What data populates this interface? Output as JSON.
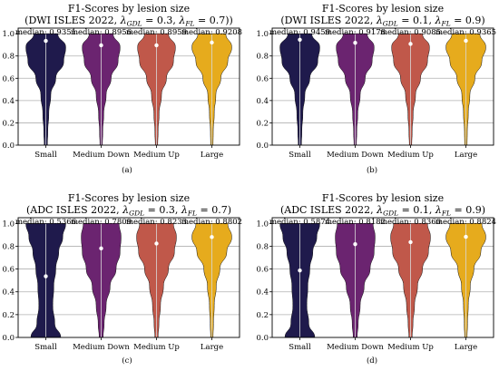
{
  "chart_data": [
    {
      "type": "violin",
      "title_line1": "F1-Scores by lesion size",
      "title_line2": "(DWI ISLES 2022, λGDL = 0.3, λFL = 0.7))",
      "title_parts": {
        "open": "(DWI ISLES 2022, ",
        "gdl_symbol": "λ",
        "gdl_sub": "GDL",
        "gdl_val": " = 0.3, ",
        "fl_symbol": "λ",
        "fl_sub": "FL",
        "fl_val": " = 0.7))"
      },
      "subcaption": "(a)",
      "categories": [
        "Small",
        "Medium Down",
        "Medium Up",
        "Large"
      ],
      "medians": [
        0.9351,
        0.8956,
        0.8959,
        0.9208
      ],
      "median_labels": [
        "median: 0.9351",
        "median: 0.8956",
        "median: 0.8959",
        "median: 0.9208"
      ],
      "ylim": [
        0,
        1.05
      ],
      "yticks": [
        0.0,
        0.2,
        0.4,
        0.6,
        0.8,
        1.0
      ],
      "ytick_labels": [
        "0.0",
        "0.2",
        "0.4",
        "0.6",
        "0.8",
        "1.0"
      ],
      "grid": true,
      "colors": [
        "#1f1a4c",
        "#6b2470",
        "#c0584a",
        "#e6ab1d"
      ],
      "widths": [
        [
          0.08,
          0.1,
          0.15,
          0.25,
          0.5,
          0.9,
          1.0,
          0.6
        ],
        [
          0.06,
          0.08,
          0.13,
          0.25,
          0.5,
          0.85,
          0.95,
          0.6
        ],
        [
          0.06,
          0.08,
          0.13,
          0.25,
          0.5,
          0.85,
          0.95,
          0.6
        ],
        [
          0.06,
          0.07,
          0.12,
          0.2,
          0.45,
          0.8,
          1.0,
          0.7
        ]
      ]
    },
    {
      "type": "violin",
      "title_line1": "F1-Scores by lesion size",
      "title_line2": "(DWI ISLES 2022, λGDL = 0.1, λFL = 0.9)",
      "title_parts": {
        "open": "(DWI ISLES 2022, ",
        "gdl_symbol": "λ",
        "gdl_sub": "GDL",
        "gdl_val": " = 0.1, ",
        "fl_symbol": "λ",
        "fl_sub": "FL",
        "fl_val": " = 0.9)"
      },
      "subcaption": "(b)",
      "categories": [
        "Small",
        "Medium Down",
        "Medium Up",
        "Large"
      ],
      "medians": [
        0.9459,
        0.9178,
        0.9085,
        0.9365
      ],
      "median_labels": [
        "median: 0.9459",
        "median: 0.9178",
        "median: 0.9085",
        "median: 0.9365"
      ],
      "ylim": [
        0,
        1.05
      ],
      "yticks": [
        0.0,
        0.2,
        0.4,
        0.6,
        0.8,
        1.0
      ],
      "ytick_labels": [
        "0.0",
        "0.2",
        "0.4",
        "0.6",
        "0.8",
        "1.0"
      ],
      "grid": true,
      "colors": [
        "#1f1a4c",
        "#6b2470",
        "#c0584a",
        "#e6ab1d"
      ],
      "widths": [
        [
          0.08,
          0.1,
          0.15,
          0.25,
          0.5,
          0.9,
          1.0,
          0.6
        ],
        [
          0.06,
          0.08,
          0.13,
          0.25,
          0.5,
          0.85,
          0.95,
          0.6
        ],
        [
          0.06,
          0.08,
          0.13,
          0.25,
          0.5,
          0.85,
          0.95,
          0.6
        ],
        [
          0.06,
          0.07,
          0.12,
          0.2,
          0.45,
          0.8,
          1.0,
          0.7
        ]
      ]
    },
    {
      "type": "violin",
      "title_line1": "F1-Scores by lesion size",
      "title_line2": "(ADC ISLES 2022, λGDL = 0.3, λFL = 0.7)",
      "title_parts": {
        "open": "(ADC ISLES 2022, ",
        "gdl_symbol": "λ",
        "gdl_sub": "GDL",
        "gdl_val": " = 0.3, ",
        "fl_symbol": "λ",
        "fl_sub": "FL",
        "fl_val": " = 0.7)"
      },
      "subcaption": "(c)",
      "categories": [
        "Small",
        "Medium Down",
        "Medium Up",
        "Large"
      ],
      "medians": [
        0.5366,
        0.7809,
        0.8233,
        0.8802
      ],
      "median_labels": [
        "median: 0.5366",
        "median: 0.7809",
        "median: 0.8233",
        "median: 0.8802"
      ],
      "ylim": [
        0,
        1.05
      ],
      "yticks": [
        0.0,
        0.2,
        0.4,
        0.6,
        0.8,
        1.0
      ],
      "ytick_labels": [
        "0.0",
        "0.2",
        "0.4",
        "0.6",
        "0.8",
        "1.0"
      ],
      "grid": true,
      "colors": [
        "#1f1a4c",
        "#6b2470",
        "#c0584a",
        "#e6ab1d"
      ],
      "widths": [
        [
          0.75,
          0.45,
          0.35,
          0.4,
          0.5,
          0.65,
          0.85,
          1.0
        ],
        [
          0.1,
          0.15,
          0.25,
          0.45,
          0.75,
          0.95,
          1.0,
          0.9
        ],
        [
          0.08,
          0.12,
          0.2,
          0.35,
          0.6,
          0.9,
          1.0,
          0.85
        ],
        [
          0.06,
          0.08,
          0.12,
          0.22,
          0.4,
          0.75,
          1.0,
          0.8
        ]
      ]
    },
    {
      "type": "violin",
      "title_line1": "F1-Scores by lesion size",
      "title_line2": "(ADC ISLES 2022, λGDL = 0.1, λFL = 0.9)",
      "title_parts": {
        "open": "(ADC ISLES 2022, ",
        "gdl_symbol": "λ",
        "gdl_sub": "GDL",
        "gdl_val": " = 0.1, ",
        "fl_symbol": "λ",
        "fl_sub": "FL",
        "fl_val": " = 0.9)"
      },
      "subcaption": "(d)",
      "categories": [
        "Small",
        "Medium Down",
        "Medium Up",
        "Large"
      ],
      "medians": [
        0.5874,
        0.8182,
        0.836,
        0.8824
      ],
      "median_labels": [
        "median: 0.5874",
        "median: 0.8182",
        "median: 0.8360",
        "median: 0.8824"
      ],
      "ylim": [
        0,
        1.05
      ],
      "yticks": [
        0.0,
        0.2,
        0.4,
        0.6,
        0.8,
        1.0
      ],
      "ytick_labels": [
        "0.0",
        "0.2",
        "0.4",
        "0.6",
        "0.8",
        "1.0"
      ],
      "grid": true,
      "colors": [
        "#1f1a4c",
        "#6b2470",
        "#c0584a",
        "#e6ab1d"
      ],
      "widths": [
        [
          0.75,
          0.45,
          0.35,
          0.4,
          0.5,
          0.65,
          0.85,
          1.0
        ],
        [
          0.1,
          0.15,
          0.25,
          0.45,
          0.75,
          0.95,
          1.0,
          0.9
        ],
        [
          0.08,
          0.12,
          0.2,
          0.35,
          0.6,
          0.9,
          1.0,
          0.85
        ],
        [
          0.06,
          0.08,
          0.12,
          0.22,
          0.4,
          0.75,
          1.0,
          0.8
        ]
      ]
    }
  ]
}
